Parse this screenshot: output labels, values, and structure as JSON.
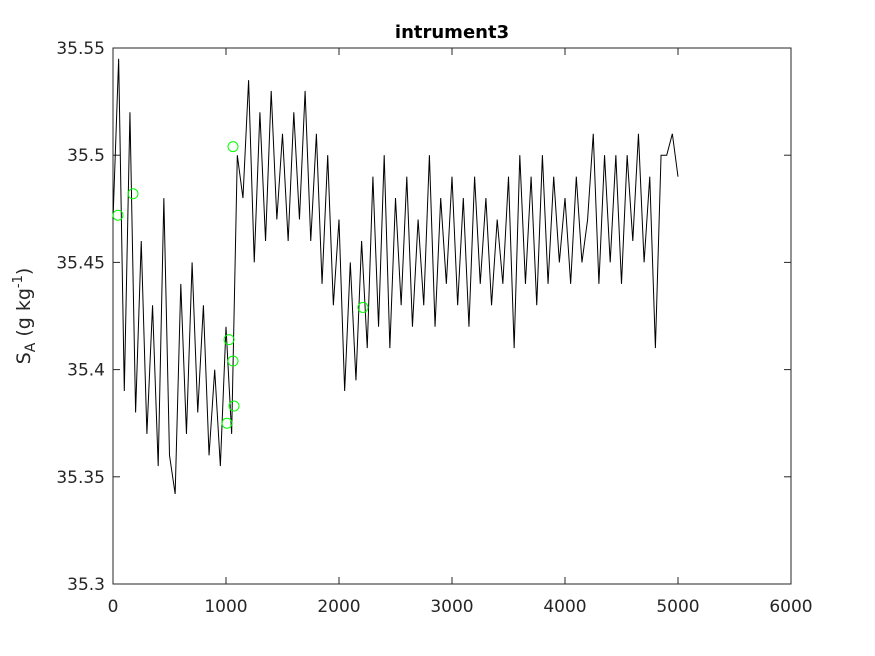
{
  "chart_data": {
    "type": "line",
    "title": "intrument3",
    "y_label": {
      "symbol": "S",
      "subscript": "A",
      "unit": "(g kg",
      "exponent": "-1",
      "close": ")"
    },
    "x": [
      0,
      50,
      100,
      150,
      200,
      250,
      300,
      350,
      400,
      450,
      500,
      550,
      600,
      650,
      700,
      750,
      800,
      850,
      900,
      950,
      1000,
      1050,
      1100,
      1150,
      1200,
      1250,
      1300,
      1350,
      1400,
      1450,
      1500,
      1550,
      1600,
      1650,
      1700,
      1750,
      1800,
      1850,
      1900,
      1950,
      2000,
      2050,
      2100,
      2150,
      2200,
      2250,
      2300,
      2350,
      2400,
      2450,
      2500,
      2550,
      2600,
      2650,
      2700,
      2750,
      2800,
      2850,
      2900,
      2950,
      3000,
      3050,
      3100,
      3150,
      3200,
      3250,
      3300,
      3350,
      3400,
      3450,
      3500,
      3550,
      3600,
      3650,
      3700,
      3750,
      3800,
      3850,
      3900,
      3950,
      4000,
      4050,
      4100,
      4150,
      4200,
      4250,
      4300,
      4350,
      4400,
      4450,
      4500,
      4550,
      4600,
      4650,
      4700,
      4750,
      4800,
      4850,
      4900,
      4950,
      5000
    ],
    "series": [
      {
        "color": "#000000",
        "values": [
          35.47,
          35.545,
          35.39,
          35.52,
          35.38,
          35.46,
          35.37,
          35.43,
          35.355,
          35.48,
          35.36,
          35.342,
          35.44,
          35.37,
          35.45,
          35.38,
          35.43,
          35.36,
          35.4,
          35.355,
          35.42,
          35.37,
          35.5,
          35.48,
          35.535,
          35.45,
          35.52,
          35.46,
          35.53,
          35.47,
          35.51,
          35.46,
          35.52,
          35.47,
          35.53,
          35.46,
          35.51,
          35.44,
          35.5,
          35.43,
          35.47,
          35.39,
          35.45,
          35.395,
          35.46,
          35.41,
          35.49,
          35.42,
          35.5,
          35.41,
          35.48,
          35.43,
          35.49,
          35.42,
          35.47,
          35.43,
          35.5,
          35.42,
          35.48,
          35.44,
          35.49,
          35.43,
          35.48,
          35.42,
          35.49,
          35.44,
          35.48,
          35.43,
          35.47,
          35.44,
          35.49,
          35.41,
          35.5,
          35.44,
          35.49,
          35.43,
          35.5,
          35.44,
          35.49,
          35.45,
          35.48,
          35.44,
          35.49,
          35.45,
          35.47,
          35.51,
          35.44,
          35.5,
          35.45,
          35.5,
          35.44,
          35.5,
          35.46,
          35.51,
          35.45,
          35.49,
          35.41,
          35.5,
          35.5,
          35.51,
          35.49
        ]
      }
    ],
    "markers": {
      "color": "#00ff00",
      "x": [
        44,
        177,
        1062,
        1027,
        1062,
        1071,
        1009,
        2212
      ],
      "values": [
        35.472,
        35.482,
        35.504,
        35.414,
        35.404,
        35.383,
        35.375,
        35.429
      ]
    },
    "xlim": [
      0,
      6000
    ],
    "xticks": [
      0,
      1000,
      2000,
      3000,
      4000,
      5000,
      6000
    ],
    "ylim": [
      35.3,
      35.55
    ],
    "yticks": [
      35.3,
      35.35,
      35.4,
      35.45,
      35.5,
      35.55
    ]
  }
}
